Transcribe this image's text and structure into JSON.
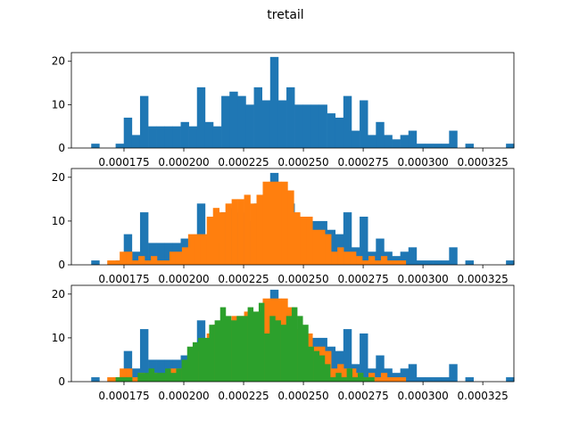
{
  "figure": {
    "title": "tretail"
  },
  "chart_data": {
    "type": "histogram",
    "title": "tretail",
    "subplot_count": 3,
    "x_ticks": [
      0.000175,
      0.0002,
      0.000225,
      0.00025,
      0.000275,
      0.0003,
      0.000325
    ],
    "x_tick_labels": [
      "0.000175",
      "0.000200",
      "0.000225",
      "0.000250",
      "0.000275",
      "0.000300",
      "0.000325"
    ],
    "xlim": [
      0.000153,
      0.000338
    ],
    "ylim": [
      0,
      22
    ],
    "y_ticks": [
      0,
      10,
      20
    ],
    "y_tick_labels": [
      "0",
      "10",
      "20"
    ],
    "grid": false,
    "colors": [
      "#1f77b4",
      "#ff7f0e",
      "#2ca02c"
    ],
    "series": [
      {
        "bin_start": 0.0001613,
        "bin_width": 3.4e-06,
        "counts": [
          1,
          0,
          0,
          1,
          7,
          3,
          12,
          5,
          5,
          5,
          5,
          6,
          5,
          14,
          6,
          5,
          12,
          13,
          12,
          10,
          14,
          11,
          21,
          11,
          14,
          10,
          10,
          10,
          10,
          8,
          7,
          12,
          4,
          11,
          3,
          6,
          3,
          2,
          3,
          4,
          1,
          1,
          1,
          1,
          4,
          0,
          1,
          0,
          0,
          0,
          0,
          1
        ]
      },
      {
        "bin_start": 0.000168,
        "bin_width": 2.6e-06,
        "counts": [
          1,
          1,
          3,
          3,
          1,
          2,
          1,
          2,
          1,
          1,
          3,
          3,
          4,
          7,
          7,
          7,
          11,
          13,
          12,
          14,
          15,
          15,
          16,
          14,
          16,
          19,
          19,
          19,
          19,
          17,
          12,
          11,
          11,
          8,
          8,
          7,
          3,
          4,
          3,
          3,
          2,
          1,
          2,
          1,
          2,
          1,
          1,
          1
        ]
      },
      {
        "bin_start": 0.0001715,
        "bin_width": 2.3e-06,
        "counts": [
          1,
          1,
          1,
          0,
          2,
          2,
          3,
          2,
          2,
          3,
          2,
          3,
          5,
          8,
          9,
          10,
          10,
          13,
          14,
          17,
          15,
          14,
          15,
          15,
          17,
          16,
          18,
          11,
          15,
          14,
          13,
          15,
          17,
          15,
          13,
          8,
          7,
          6,
          4,
          1,
          2,
          1,
          3,
          1,
          2,
          1,
          1
        ]
      }
    ]
  }
}
